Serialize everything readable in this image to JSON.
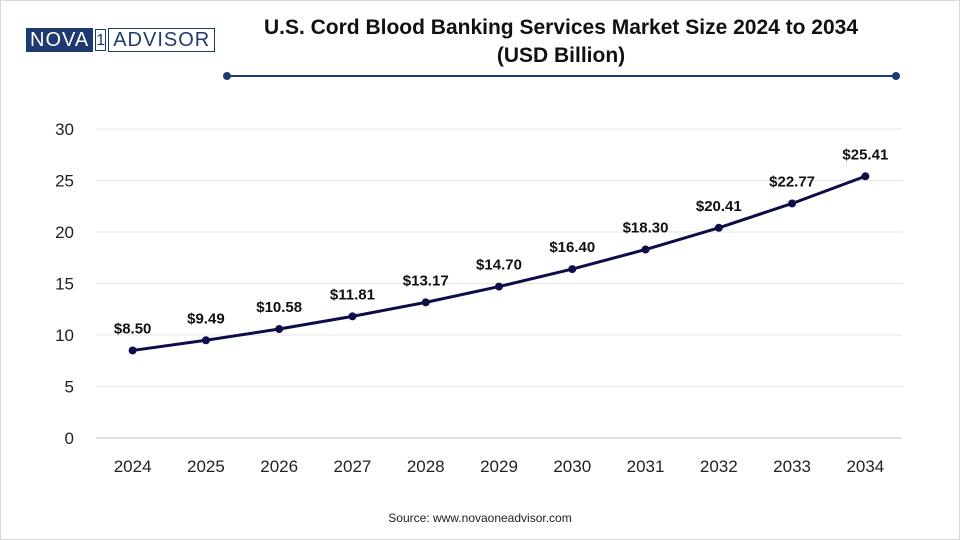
{
  "brand": {
    "part1": "NOVA",
    "part2": "1",
    "part3": "ADVISOR"
  },
  "title_line1": "U.S. Cord Blood Banking Services Market Size 2024 to 2034",
  "title_line2": "(USD Billion)",
  "source": "Source: www.novaoneadvisor.com",
  "colors": {
    "line": "#0d0d4a",
    "brand": "#1f3a6e",
    "grid": "#e6e6e6"
  },
  "chart_data": {
    "type": "line",
    "title": "U.S. Cord Blood Banking Services Market Size 2024 to 2034 (USD Billion)",
    "categories": [
      "2024",
      "2025",
      "2026",
      "2027",
      "2028",
      "2029",
      "2030",
      "2031",
      "2032",
      "2033",
      "2034"
    ],
    "values": [
      8.5,
      9.49,
      10.58,
      11.81,
      13.17,
      14.7,
      16.4,
      18.3,
      20.41,
      22.77,
      25.41
    ],
    "data_labels": [
      "$8.50",
      "$9.49",
      "$10.58",
      "$11.81",
      "$13.17",
      "$14.70",
      "$16.40",
      "$18.30",
      "$20.41",
      "$22.77",
      "$25.41"
    ],
    "ylim": [
      0,
      30
    ],
    "yticks": [
      0,
      5,
      10,
      15,
      20,
      25,
      30
    ],
    "grid": true,
    "legend": "none"
  }
}
